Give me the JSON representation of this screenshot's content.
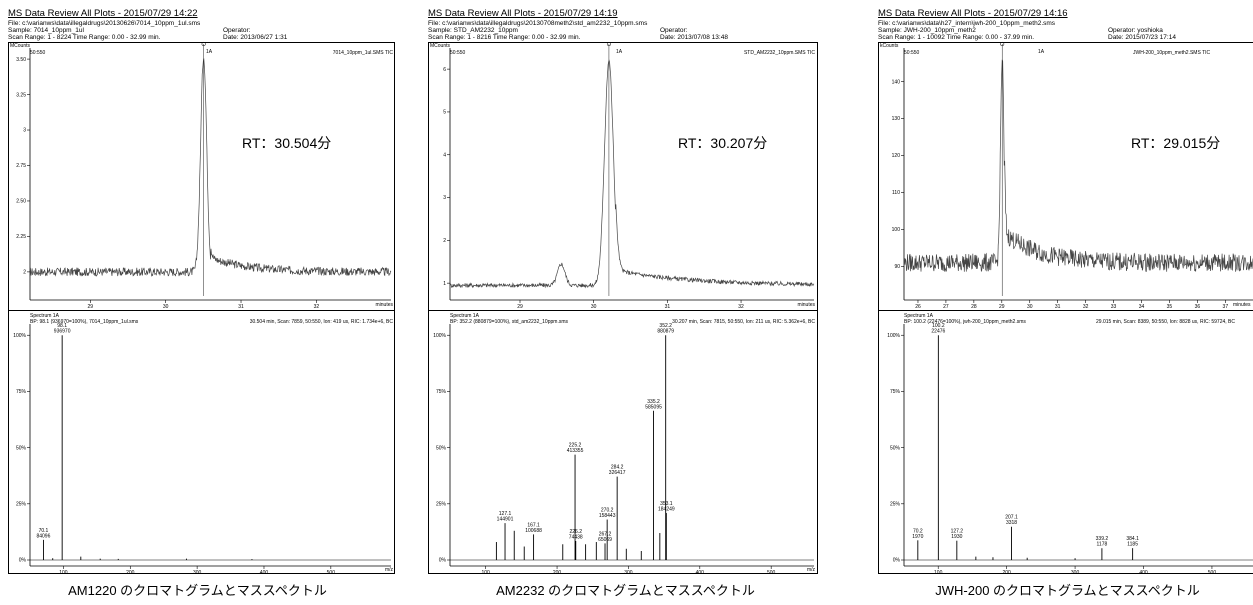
{
  "panels": [
    {
      "title": "MS Data Review All Plots - 2015/07/29 14:22",
      "file": "File: c:\\varianws\\data\\illegaldrugs\\20130626\\7014_10ppm_1ul.sms",
      "sample": "Sample: 7014_10ppm_1ul",
      "operator": "Operator:",
      "scan_range": "Scan Range: 1 - 8224 Time Range: 0.00 - 32.99 min.",
      "date": "Date: 2013/06/27 1:31",
      "unit_label": "MCounts",
      "ion_label": "50:550",
      "peak_tag": "1A",
      "trace_label": "7014_10ppm_1ul.SMS TIC",
      "x_axis_label": "minutes",
      "spectrum_label": "Spectrum 1A",
      "bp_label": "BP: 98.1 (936970=100%), 7014_10ppm_1ul.sms",
      "scan_info": "30.504 min, Scan: 7859, 50:550, Ion: 419 us, RIC: 1.734e+6, BC",
      "mz_label": "m/z",
      "rt_label": "RT：30.504分",
      "caption": "AM1220 のクロマトグラムとマススペクトル"
    },
    {
      "title": "MS Data Review All Plots - 2015/07/29 14:19",
      "file": "File: c:\\varianws\\data\\illegaldrugs\\20130708meth2\\std_am2232_10ppm.sms",
      "sample": "Sample: STD_AM2232_10ppm",
      "operator": "Operator:",
      "scan_range": "Scan Range: 1 - 8216 Time Range: 0.00 - 32.99 min.",
      "date": "Date: 2013/07/08 13:48",
      "unit_label": "MCounts",
      "ion_label": "50:550",
      "peak_tag": "1A",
      "trace_label": "STD_AM2232_10ppm.SMS TIC",
      "x_axis_label": "minutes",
      "spectrum_label": "Spectrum 1A",
      "bp_label": "BP: 352.2 (880879=100%), std_am2232_10ppm.sms",
      "scan_info": "30.207 min, Scan: 7815, 50:550, Ion: 211 us, RIC: 5.362e+6, BC",
      "mz_label": "m/z",
      "rt_label": "RT：30.207分",
      "caption": "AM2232 のクロマトグラムとマススペクトル"
    },
    {
      "title": "MS Data Review All Plots - 2015/07/29 14:16",
      "file": "File: c:\\varianws\\data\\h27_intern\\jwh-200_10ppm_meth2.sms",
      "sample": "Sample: JWH-200_10ppm_meth2",
      "operator": "Operator: yoshioka",
      "scan_range": "Scan Range: 1 - 10092 Time Range: 0.00 - 37.99 min.",
      "date": "Date: 2015/07/23 17:14",
      "unit_label": "kCounts",
      "ion_label": "50:550",
      "peak_tag": "1A",
      "trace_label": "JWH-200_10ppm_meth2.SMS TIC",
      "x_axis_label": "minutes",
      "spectrum_label": "Spectrum 1A",
      "bp_label": "BP: 100.2 (22476=100%), jwh-200_10ppm_meth2.sms",
      "scan_info": "29.015 min, Scan: 8389, 50:550, Ion: 8828 us, RIC: 59724, BC",
      "mz_label": "m/z",
      "rt_label": "RT：29.015分",
      "caption": "JWH-200 のクロマトグラムとマススペクトル"
    }
  ],
  "chart_data": [
    {
      "type": "line",
      "title": "AM1220 chromatogram",
      "xlabel": "minutes",
      "ylabel": "MCounts",
      "xlim": [
        28.2,
        32.99
      ],
      "ylim": [
        1.83,
        3.55
      ],
      "x_ticks": [
        29,
        30,
        31,
        32
      ],
      "y_ticks": [
        2.0,
        2.25,
        2.5,
        2.75,
        3.0,
        3.25,
        3.5
      ],
      "baseline": 2.0,
      "noise": 0.03,
      "peaks": [
        {
          "rt": 30.504,
          "height": 3.52,
          "width": 0.04
        }
      ],
      "tail": {
        "start": 30.6,
        "level": 2.1,
        "decay": 0.5
      }
    },
    {
      "type": "bar",
      "title": "AM1220 mass spectrum",
      "xlabel": "m/z",
      "ylabel": "%",
      "xlim": [
        50,
        590
      ],
      "x_ticks": [
        100,
        200,
        300,
        400,
        500
      ],
      "y_ticks": [
        0,
        25,
        50,
        75,
        100
      ],
      "peaks": [
        {
          "mz": 98.1,
          "pct": 100,
          "intensity": 936970,
          "labeled": true
        },
        {
          "mz": 70.1,
          "pct": 8.97,
          "intensity": 84096,
          "labeled": true
        },
        {
          "mz": 84,
          "pct": 0.8,
          "labeled": false
        },
        {
          "mz": 126,
          "pct": 1.5,
          "labeled": false
        },
        {
          "mz": 155,
          "pct": 0.6,
          "labeled": false
        },
        {
          "mz": 182,
          "pct": 0.5,
          "labeled": false
        },
        {
          "mz": 284,
          "pct": 0.6,
          "labeled": false
        },
        {
          "mz": 382,
          "pct": 0.4,
          "labeled": false
        }
      ]
    },
    {
      "type": "line",
      "title": "AM2232 chromatogram",
      "xlabel": "minutes",
      "ylabel": "MCounts",
      "xlim": [
        28.05,
        32.99
      ],
      "ylim": [
        0.7,
        6.4
      ],
      "x_ticks": [
        29,
        30,
        31,
        32
      ],
      "y_ticks": [
        1,
        2,
        3,
        4,
        5,
        6
      ],
      "baseline": 0.95,
      "noise": 0.05,
      "peaks": [
        {
          "rt": 30.207,
          "height": 6.2,
          "width": 0.06
        },
        {
          "rt": 29.56,
          "height": 1.45,
          "width": 0.05
        }
      ],
      "tail": {
        "start": 30.3,
        "level": 1.3,
        "decay": 1.0
      }
    },
    {
      "type": "bar",
      "title": "AM2232 mass spectrum",
      "xlabel": "m/z",
      "ylabel": "%",
      "xlim": [
        50,
        560
      ],
      "x_ticks": [
        100,
        200,
        300,
        400,
        500
      ],
      "y_ticks": [
        0,
        25,
        50,
        75,
        100
      ],
      "peaks": [
        {
          "mz": 352.2,
          "pct": 100,
          "intensity": 880879,
          "labeled": true
        },
        {
          "mz": 335.2,
          "pct": 66.4,
          "intensity": 585095,
          "labeled": true
        },
        {
          "mz": 225.2,
          "pct": 46.9,
          "intensity": 413355,
          "labeled": true
        },
        {
          "mz": 284.2,
          "pct": 37.1,
          "intensity": 326417,
          "labeled": true
        },
        {
          "mz": 353.1,
          "pct": 20.9,
          "intensity": 184249,
          "labeled": true
        },
        {
          "mz": 270.2,
          "pct": 18.0,
          "intensity": 158443,
          "labeled": true
        },
        {
          "mz": 127.1,
          "pct": 16.4,
          "intensity": 144901,
          "labeled": true
        },
        {
          "mz": 167.1,
          "pct": 11.4,
          "intensity": 100688,
          "labeled": true
        },
        {
          "mz": 226.2,
          "pct": 8.45,
          "intensity": 74438,
          "labeled": true
        },
        {
          "mz": 267.2,
          "pct": 7.39,
          "intensity": 65069,
          "labeled": true
        },
        {
          "mz": 140,
          "pct": 13,
          "labeled": false
        },
        {
          "mz": 115,
          "pct": 8,
          "labeled": false
        },
        {
          "mz": 154,
          "pct": 6,
          "labeled": false
        },
        {
          "mz": 208,
          "pct": 7,
          "labeled": false
        },
        {
          "mz": 240,
          "pct": 7,
          "labeled": false
        },
        {
          "mz": 255,
          "pct": 8,
          "labeled": false
        },
        {
          "mz": 297,
          "pct": 5,
          "labeled": false
        },
        {
          "mz": 318,
          "pct": 4,
          "labeled": false
        },
        {
          "mz": 344,
          "pct": 12,
          "labeled": false
        }
      ]
    },
    {
      "type": "line",
      "title": "JWH-200 chromatogram",
      "xlabel": "minutes",
      "ylabel": "kCounts",
      "xlim": [
        25.5,
        37.99
      ],
      "ylim": [
        82,
        148
      ],
      "x_ticks": [
        26,
        27,
        28,
        29,
        30,
        31,
        32,
        33,
        34,
        35,
        36,
        37
      ],
      "y_ticks": [
        90,
        100,
        110,
        120,
        130,
        140
      ],
      "baseline": 91,
      "noise": 2.5,
      "peaks": [
        {
          "rt": 29.015,
          "height": 146,
          "width": 0.06
        }
      ],
      "tail": {
        "start": 29.1,
        "level": 8,
        "decay": 1.2
      }
    },
    {
      "type": "bar",
      "title": "JWH-200 mass spectrum",
      "xlabel": "m/z",
      "ylabel": "%",
      "xlim": [
        50,
        560
      ],
      "x_ticks": [
        100,
        200,
        300,
        400,
        500
      ],
      "y_ticks": [
        0,
        25,
        50,
        75,
        100
      ],
      "peaks": [
        {
          "mz": 100.2,
          "pct": 100,
          "intensity": 22476,
          "labeled": true
        },
        {
          "mz": 207.1,
          "pct": 14.8,
          "intensity": 3318,
          "labeled": true
        },
        {
          "mz": 70.2,
          "pct": 8.76,
          "intensity": 1970,
          "labeled": true
        },
        {
          "mz": 127.2,
          "pct": 8.59,
          "intensity": 1930,
          "labeled": true
        },
        {
          "mz": 339.2,
          "pct": 5.24,
          "intensity": 1178,
          "labeled": true
        },
        {
          "mz": 384.1,
          "pct": 5.27,
          "intensity": 1185,
          "labeled": true
        },
        {
          "mz": 155,
          "pct": 1.5,
          "labeled": false
        },
        {
          "mz": 180,
          "pct": 1.2,
          "labeled": false
        },
        {
          "mz": 230,
          "pct": 1.0,
          "labeled": false
        },
        {
          "mz": 300,
          "pct": 0.8,
          "labeled": false
        }
      ]
    }
  ]
}
